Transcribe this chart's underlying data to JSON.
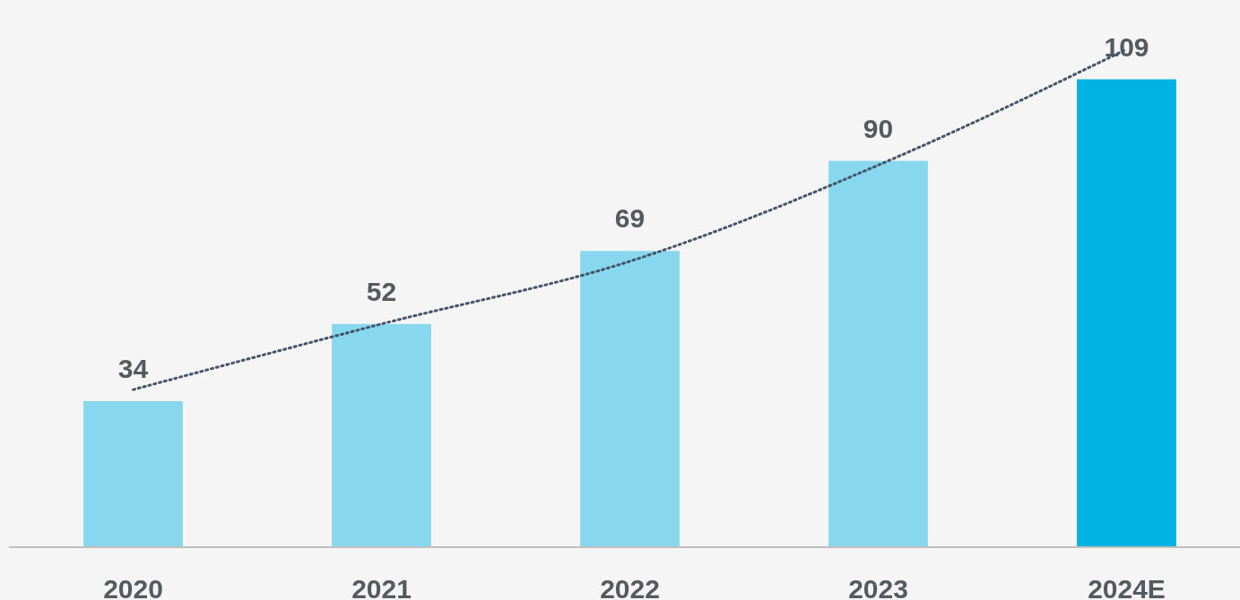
{
  "chart_data": {
    "type": "bar",
    "categories": [
      "2020",
      "2021",
      "2022",
      "2023",
      "2024E"
    ],
    "series": [
      {
        "values": [
          34,
          52,
          69,
          90,
          109
        ],
        "value_labels": [
          "34",
          "52",
          "69",
          "90",
          "109"
        ],
        "colors": [
          "#87d7ee",
          "#87d7ee",
          "#87d7ee",
          "#87d7ee",
          "#00b2e2"
        ]
      },
      {
        "type": "line",
        "values": [
          36.7,
          52,
          66.6,
          89,
          116
        ],
        "color": "#44546a",
        "line_style": "dotted"
      }
    ]
  }
}
